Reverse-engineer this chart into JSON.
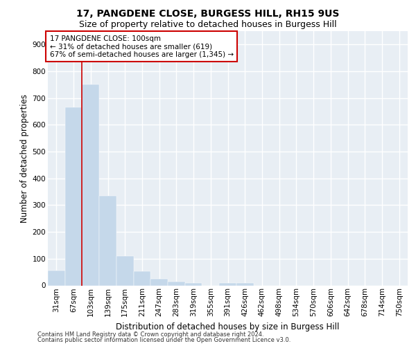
{
  "title1": "17, PANGDENE CLOSE, BURGESS HILL, RH15 9US",
  "title2": "Size of property relative to detached houses in Burgess Hill",
  "xlabel": "Distribution of detached houses by size in Burgess Hill",
  "ylabel": "Number of detached properties",
  "footnote1": "Contains HM Land Registry data © Crown copyright and database right 2024.",
  "footnote2": "Contains public sector information licensed under the Open Government Licence v3.0.",
  "categories": [
    "31sqm",
    "67sqm",
    "103sqm",
    "139sqm",
    "175sqm",
    "211sqm",
    "247sqm",
    "283sqm",
    "319sqm",
    "355sqm",
    "391sqm",
    "426sqm",
    "462sqm",
    "498sqm",
    "534sqm",
    "570sqm",
    "606sqm",
    "642sqm",
    "678sqm",
    "714sqm",
    "750sqm"
  ],
  "values": [
    55,
    665,
    750,
    335,
    110,
    52,
    25,
    15,
    10,
    0,
    10,
    10,
    0,
    0,
    0,
    0,
    0,
    0,
    0,
    0,
    0
  ],
  "bar_color": "#c5d8ea",
  "bar_edge_color": "#c5d8ea",
  "vline_color": "#cc0000",
  "vline_x": 1.5,
  "annotation_text": "17 PANGDENE CLOSE: 100sqm\n← 31% of detached houses are smaller (619)\n67% of semi-detached houses are larger (1,345) →",
  "annotation_box_color": "#cc0000",
  "ylim": [
    0,
    950
  ],
  "yticks": [
    0,
    100,
    200,
    300,
    400,
    500,
    600,
    700,
    800,
    900
  ],
  "bg_color": "#e8eef4",
  "grid_color": "#ffffff",
  "title1_fontsize": 10,
  "title2_fontsize": 9,
  "xlabel_fontsize": 8.5,
  "ylabel_fontsize": 8.5,
  "tick_fontsize": 7.5,
  "annotation_fontsize": 7.5,
  "footnote_fontsize": 6.0
}
